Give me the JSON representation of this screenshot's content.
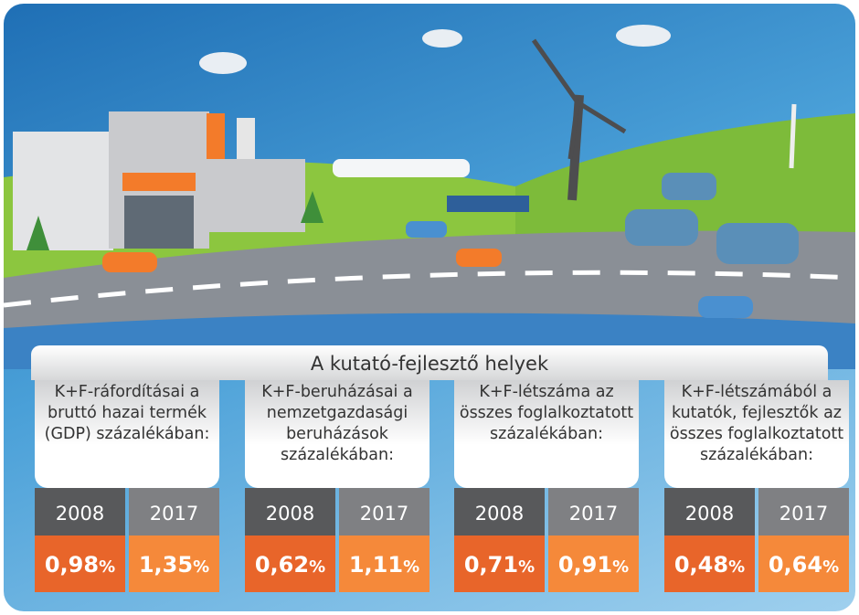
{
  "title": "A kutató-fejlesztő helyek",
  "panels": [
    {
      "label": "K+F-ráfordításai a bruttó hazai termék (GDP) százalékában:",
      "years": [
        "2008",
        "2017"
      ],
      "values": [
        {
          "value": "0,98",
          "unit": "%"
        },
        {
          "value": "1,35",
          "unit": "%"
        }
      ]
    },
    {
      "label": "K+F-beruházásai a nemzetgazdasági beruházások százalékában:",
      "years": [
        "2008",
        "2017"
      ],
      "values": [
        {
          "value": "0,62",
          "unit": "%"
        },
        {
          "value": "1,11",
          "unit": "%"
        }
      ]
    },
    {
      "label": "K+F-létszáma az összes foglalkoztatott százalékában:",
      "years": [
        "2008",
        "2017"
      ],
      "values": [
        {
          "value": "0,71",
          "unit": "%"
        },
        {
          "value": "0,91",
          "unit": "%"
        }
      ]
    },
    {
      "label": "K+F-létszámából a kutatók, fejlesztők az összes foglalkoztatott százalékában:",
      "years": [
        "2008",
        "2017"
      ],
      "values": [
        {
          "value": "0,48",
          "unit": "%"
        },
        {
          "value": "0,64",
          "unit": "%"
        }
      ]
    }
  ]
}
